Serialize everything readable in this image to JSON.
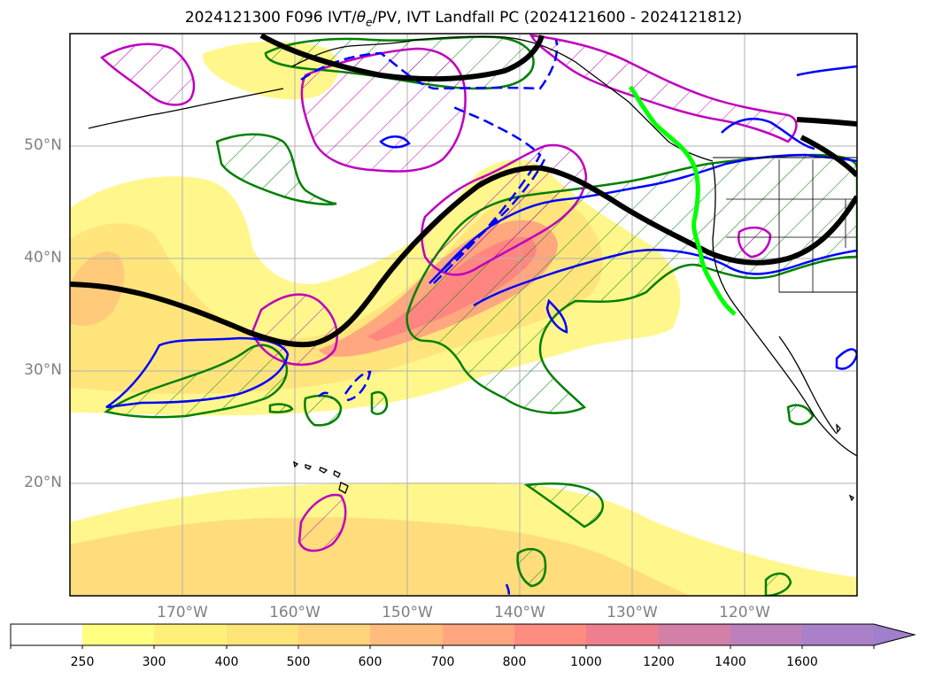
{
  "title": {
    "prefix": "2024121300 F096 IVT/",
    "theta": "θ",
    "theta_sub": "e",
    "suffix": "/PV, IVT Landfall PC (2024121600 - 2024121812)"
  },
  "map": {
    "lat_labels": [
      "50°N",
      "40°N",
      "30°N",
      "20°N"
    ],
    "lon_labels": [
      "170°W",
      "160°W",
      "150°W",
      "140°W",
      "130°W",
      "120°W"
    ],
    "lat_range": [
      10,
      60
    ],
    "lon_range": [
      -180,
      -110
    ],
    "colors": {
      "pv_positive": "#0000ff",
      "pv_hatch": "#008000",
      "theta_contour": "#bf00bf",
      "trough_line": "#000000",
      "landfall_line": "#00ff00",
      "coastline": "#000000"
    }
  },
  "colorbar": {
    "labels": [
      "250",
      "300",
      "400",
      "500",
      "600",
      "700",
      "800",
      "1000",
      "1200",
      "1400",
      "1600"
    ],
    "colors": [
      "#ffffff",
      "#ffff80",
      "#fff07a",
      "#ffdb78",
      "#ffcc7a",
      "#ffb080",
      "#ff9980",
      "#ff8080",
      "#e67f99",
      "#cc80b3",
      "#b380c0",
      "#a680cc"
    ],
    "extend": "max"
  }
}
